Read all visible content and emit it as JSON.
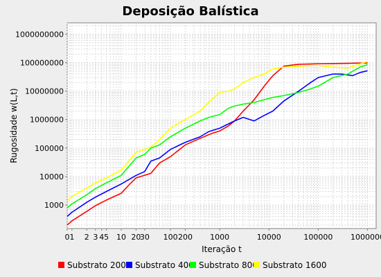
{
  "chart_data": {
    "type": "line",
    "title": "Deposição Balística",
    "xlabel": "Iteração t",
    "ylabel": "Rugosidade w(L,t)",
    "x_scale": "log",
    "y_scale": "log",
    "xlim": [
      0.8,
      1500000
    ],
    "ylim": [
      150,
      2500000000
    ],
    "grid": true,
    "legend_position": "bottom",
    "x_ticks": [
      {
        "value": 0.8,
        "label": "0"
      },
      {
        "value": 1,
        "label": "1"
      },
      {
        "value": 2,
        "label": "2"
      },
      {
        "value": 3,
        "label": "3"
      },
      {
        "value": 4,
        "label": "4"
      },
      {
        "value": 5,
        "label": "5"
      },
      {
        "value": 10,
        "label": "10"
      },
      {
        "value": 20,
        "label": "20"
      },
      {
        "value": 30,
        "label": "30"
      },
      {
        "value": 100,
        "label": "100"
      },
      {
        "value": 200,
        "label": "200"
      },
      {
        "value": 1000,
        "label": "1000"
      },
      {
        "value": 10000,
        "label": "10000"
      },
      {
        "value": 100000,
        "label": "100000"
      },
      {
        "value": 1000000,
        "label": "1000000"
      }
    ],
    "y_ticks": [
      {
        "value": 1000,
        "label": "1000"
      },
      {
        "value": 10000,
        "label": "10000"
      },
      {
        "value": 100000,
        "label": "100000"
      },
      {
        "value": 1000000,
        "label": "1000000"
      },
      {
        "value": 10000000,
        "label": "10000000"
      },
      {
        "value": 100000000,
        "label": "100000000"
      },
      {
        "value": 1000000000,
        "label": "1000000000"
      }
    ],
    "series": [
      {
        "name": "Substrato 200",
        "color": "#ff0000",
        "x": [
          0.8,
          1,
          2,
          3,
          5,
          10,
          15,
          20,
          40,
          60,
          100,
          200,
          400,
          700,
          1000,
          1500,
          2000,
          3000,
          5000,
          8000,
          12000,
          20000,
          40000,
          70000,
          100000,
          200000,
          400000,
          700000,
          1000000
        ],
        "y": [
          200,
          280,
          600,
          950,
          1500,
          2600,
          5500,
          9000,
          13000,
          30000,
          50000,
          130000,
          220000,
          330000,
          400000,
          600000,
          900000,
          2000000,
          5000000,
          15000000,
          35000000,
          75000000,
          88000000,
          90000000,
          92000000,
          93000000,
          95000000,
          97000000,
          98000000
        ]
      },
      {
        "name": "Substrato 400",
        "color": "#0000ff",
        "x": [
          0.8,
          1,
          2,
          3,
          5,
          10,
          20,
          30,
          40,
          60,
          100,
          200,
          400,
          600,
          1000,
          2000,
          3000,
          5000,
          8000,
          12000,
          20000,
          40000,
          70000,
          100000,
          200000,
          300000,
          500000,
          700000,
          1000000
        ],
        "y": [
          400,
          560,
          1250,
          1900,
          3000,
          5500,
          11000,
          15000,
          35000,
          45000,
          90000,
          160000,
          250000,
          380000,
          500000,
          900000,
          1200000,
          900000,
          1400000,
          2000000,
          4500000,
          10000000,
          20000000,
          30000000,
          40000000,
          40000000,
          35000000,
          45000000,
          52000000
        ]
      },
      {
        "name": "Substrato 800",
        "color": "#00ff00",
        "x": [
          0.8,
          1,
          2,
          3,
          5,
          10,
          20,
          30,
          40,
          60,
          100,
          200,
          400,
          600,
          1000,
          1500,
          2000,
          3000,
          5000,
          8000,
          12000,
          20000,
          40000,
          70000,
          100000,
          200000,
          400000,
          700000,
          1000000
        ],
        "y": [
          800,
          1100,
          2300,
          3800,
          6000,
          11000,
          45000,
          60000,
          100000,
          130000,
          250000,
          500000,
          900000,
          1200000,
          1500000,
          2500000,
          3000000,
          3500000,
          4000000,
          5000000,
          6000000,
          7000000,
          9000000,
          12000000,
          15000000,
          30000000,
          40000000,
          70000000,
          85000000
        ]
      },
      {
        "name": "Substrato 1600",
        "color": "#ffff00",
        "x": [
          0.8,
          1,
          2,
          3,
          5,
          10,
          20,
          30,
          40,
          60,
          100,
          200,
          400,
          600,
          1000,
          1500,
          2000,
          3000,
          5000,
          8000,
          12000,
          20000,
          40000,
          70000,
          100000,
          200000,
          400000,
          700000,
          1000000
        ],
        "y": [
          1400,
          2000,
          4000,
          6000,
          9000,
          17000,
          70000,
          90000,
          110000,
          200000,
          500000,
          1000000,
          2000000,
          4000000,
          9000000,
          10000000,
          12000000,
          20000000,
          30000000,
          40000000,
          60000000,
          70000000,
          75000000,
          80000000,
          80000000,
          70000000,
          65000000,
          90000000,
          110000000
        ]
      }
    ]
  }
}
